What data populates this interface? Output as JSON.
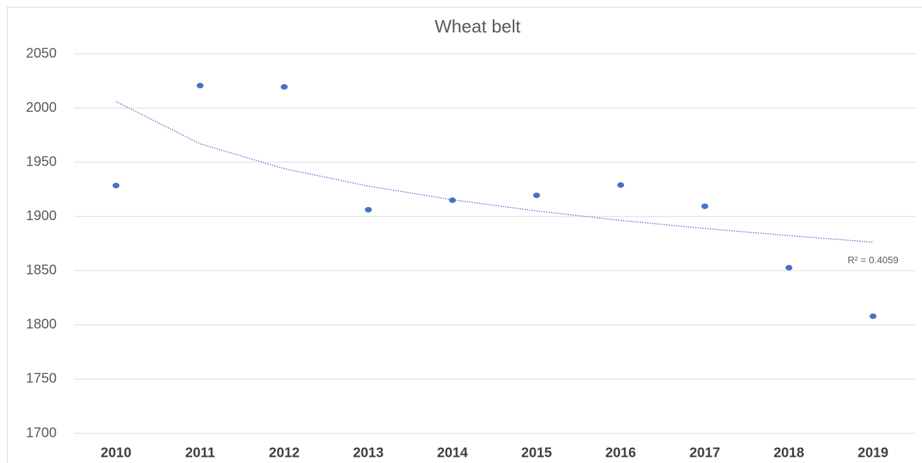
{
  "chart_data": {
    "type": "scatter",
    "title": "Wheat belt",
    "categories": [
      "2010",
      "2011",
      "2012",
      "2013",
      "2014",
      "2015",
      "2016",
      "2017",
      "2018",
      "2019"
    ],
    "series": [
      {
        "color": "#4472c4",
        "values": [
          1928.5,
          2020.7,
          2019.5,
          1906.2,
          1915,
          1919.5,
          1929,
          1909.4,
          1852.7,
          1808
        ]
      }
    ],
    "trendline": {
      "type": "logarithmic",
      "color": "#4472c4",
      "values": [
        2006,
        1967,
        1944.1,
        1928,
        1915.4,
        1905.1,
        1896.4,
        1888.9,
        1882.3,
        1876.3
      ],
      "annotation": "R² = 0.4059"
    },
    "ylim": [
      1700,
      2050
    ],
    "yticks": [
      1700,
      1750,
      1800,
      1850,
      1900,
      1950,
      2000,
      2050
    ],
    "grid": true
  }
}
